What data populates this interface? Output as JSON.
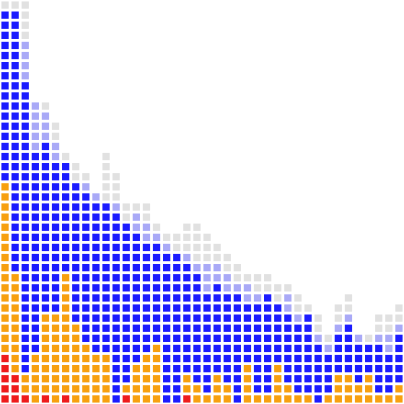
{
  "chart_data": {
    "type": "heatmap",
    "title": "",
    "xlabel": "",
    "ylabel": "",
    "grid": false,
    "legend": "none",
    "colors": {
      "red": "#ee1c1c",
      "orange": "#f7a00f",
      "blue": "#1b1bff",
      "faded_blue": "#a9a9f7",
      "gray": "#e1e1e1"
    },
    "columns": [
      [
        [
          5,
          "red"
        ],
        [
          17,
          "orange"
        ],
        [
          17,
          "blue"
        ],
        [
          1,
          "gray"
        ]
      ],
      [
        [
          3,
          "red"
        ],
        [
          10,
          "orange"
        ],
        [
          26,
          "blue"
        ],
        [
          1,
          "gray"
        ]
      ],
      [
        [
          1,
          "red"
        ],
        [
          2,
          "orange"
        ],
        [
          29,
          "blue"
        ],
        [
          4,
          "faded_blue"
        ],
        [
          4,
          "gray"
        ]
      ],
      [
        [
          0,
          "red"
        ],
        [
          5,
          "orange"
        ],
        [
          20,
          "blue"
        ],
        [
          5,
          "faded_blue"
        ],
        [
          0,
          "gray"
        ]
      ],
      [
        [
          1,
          "red"
        ],
        [
          8,
          "orange"
        ],
        [
          17,
          "blue"
        ],
        [
          3,
          "faded_blue"
        ],
        [
          1,
          "gray"
        ]
      ],
      [
        [
          0,
          "red"
        ],
        [
          9,
          "orange"
        ],
        [
          15,
          "blue"
        ],
        [
          2,
          "faded_blue"
        ],
        [
          2,
          "gray"
        ]
      ],
      [
        [
          1,
          "red"
        ],
        [
          12,
          "orange"
        ],
        [
          11,
          "blue"
        ],
        [
          0,
          "faded_blue"
        ],
        [
          1,
          "gray"
        ]
      ],
      [
        [
          0,
          "red"
        ],
        [
          8,
          "orange"
        ],
        [
          14,
          "blue"
        ],
        [
          0,
          "faded_blue"
        ],
        [
          2,
          "gray"
        ]
      ],
      [
        [
          0,
          "red"
        ],
        [
          6,
          "orange"
        ],
        [
          15,
          "blue"
        ],
        [
          1,
          "faded_blue"
        ],
        [
          1,
          "gray"
        ]
      ],
      [
        [
          0,
          "red"
        ],
        [
          5,
          "orange"
        ],
        [
          15,
          "blue"
        ],
        [
          1,
          "faded_blue"
        ],
        [
          0,
          "gray"
        ]
      ],
      [
        [
          0,
          "red"
        ],
        [
          5,
          "orange"
        ],
        [
          15,
          "blue"
        ],
        [
          0,
          "faded_blue"
        ],
        [
          5,
          "gray"
        ]
      ],
      [
        [
          0,
          "red"
        ],
        [
          0,
          "orange"
        ],
        [
          19,
          "blue"
        ],
        [
          1,
          "faded_blue"
        ],
        [
          3,
          "gray"
        ]
      ],
      [
        [
          1,
          "red"
        ],
        [
          1,
          "orange"
        ],
        [
          16,
          "blue"
        ],
        [
          0,
          "faded_blue"
        ],
        [
          2,
          "gray"
        ]
      ],
      [
        [
          0,
          "red"
        ],
        [
          4,
          "orange"
        ],
        [
          13,
          "blue"
        ],
        [
          2,
          "faded_blue"
        ],
        [
          1,
          "gray"
        ]
      ],
      [
        [
          0,
          "red"
        ],
        [
          5,
          "orange"
        ],
        [
          11,
          "blue"
        ],
        [
          2,
          "faded_blue"
        ],
        [
          2,
          "gray"
        ]
      ],
      [
        [
          0,
          "red"
        ],
        [
          6,
          "orange"
        ],
        [
          10,
          "blue"
        ],
        [
          1,
          "faded_blue"
        ],
        [
          1,
          "gray"
        ]
      ],
      [
        [
          0,
          "red"
        ],
        [
          0,
          "orange"
        ],
        [
          15,
          "blue"
        ],
        [
          1,
          "faded_blue"
        ],
        [
          1,
          "gray"
        ]
      ],
      [
        [
          0,
          "red"
        ],
        [
          0,
          "orange"
        ],
        [
          15,
          "blue"
        ],
        [
          0,
          "faded_blue"
        ],
        [
          2,
          "gray"
        ]
      ],
      [
        [
          1,
          "red"
        ],
        [
          2,
          "orange"
        ],
        [
          11,
          "blue"
        ],
        [
          1,
          "faded_blue"
        ],
        [
          3,
          "gray"
        ]
      ],
      [
        [
          0,
          "red"
        ],
        [
          2,
          "orange"
        ],
        [
          11,
          "blue"
        ],
        [
          1,
          "faded_blue"
        ],
        [
          4,
          "gray"
        ]
      ],
      [
        [
          0,
          "red"
        ],
        [
          1,
          "orange"
        ],
        [
          10,
          "blue"
        ],
        [
          3,
          "faded_blue"
        ],
        [
          3,
          "gray"
        ]
      ],
      [
        [
          0,
          "red"
        ],
        [
          3,
          "orange"
        ],
        [
          9,
          "blue"
        ],
        [
          2,
          "faded_blue"
        ],
        [
          2,
          "gray"
        ]
      ],
      [
        [
          0,
          "red"
        ],
        [
          2,
          "orange"
        ],
        [
          9,
          "blue"
        ],
        [
          2,
          "faded_blue"
        ],
        [
          2,
          "gray"
        ]
      ],
      [
        [
          0,
          "red"
        ],
        [
          0,
          "orange"
        ],
        [
          11,
          "blue"
        ],
        [
          1,
          "faded_blue"
        ],
        [
          2,
          "gray"
        ]
      ],
      [
        [
          0,
          "red"
        ],
        [
          4,
          "orange"
        ],
        [
          6,
          "blue"
        ],
        [
          2,
          "faded_blue"
        ],
        [
          1,
          "gray"
        ]
      ],
      [
        [
          0,
          "red"
        ],
        [
          1,
          "orange"
        ],
        [
          9,
          "blue"
        ],
        [
          1,
          "faded_blue"
        ],
        [
          2,
          "gray"
        ]
      ],
      [
        [
          0,
          "red"
        ],
        [
          1,
          "orange"
        ],
        [
          10,
          "blue"
        ],
        [
          0,
          "faded_blue"
        ],
        [
          2,
          "gray"
        ]
      ],
      [
        [
          0,
          "red"
        ],
        [
          4,
          "orange"
        ],
        [
          6,
          "blue"
        ],
        [
          0,
          "faded_blue"
        ],
        [
          2,
          "gray"
        ]
      ],
      [
        [
          0,
          "red"
        ],
        [
          2,
          "orange"
        ],
        [
          7,
          "blue"
        ],
        [
          2,
          "faded_blue"
        ],
        [
          1,
          "gray"
        ]
      ],
      [
        [
          0,
          "red"
        ],
        [
          1,
          "orange"
        ],
        [
          7,
          "blue"
        ],
        [
          1,
          "faded_blue"
        ],
        [
          2,
          "gray"
        ]
      ],
      [
        [
          0,
          "red"
        ],
        [
          1,
          "orange"
        ],
        [
          8,
          "blue"
        ],
        [
          0,
          "faded_blue"
        ],
        [
          1,
          "gray"
        ]
      ],
      [
        [
          0,
          "red"
        ],
        [
          0,
          "orange"
        ],
        [
          6,
          "blue"
        ],
        [
          1,
          "faded_blue"
        ],
        [
          2,
          "gray"
        ]
      ],
      [
        [
          0,
          "red"
        ],
        [
          1,
          "orange"
        ],
        [
          4,
          "blue"
        ],
        [
          1,
          "faded_blue"
        ],
        [
          1,
          "gray"
        ]
      ],
      [
        [
          0,
          "red"
        ],
        [
          3,
          "orange"
        ],
        [
          4,
          "blue"
        ],
        [
          1,
          "faded_blue"
        ],
        [
          2,
          "gray"
        ]
      ],
      [
        [
          0,
          "red"
        ],
        [
          3,
          "orange"
        ],
        [
          5,
          "blue"
        ],
        [
          1,
          "faded_blue"
        ],
        [
          2,
          "gray"
        ]
      ],
      [
        [
          0,
          "red"
        ],
        [
          2,
          "orange"
        ],
        [
          4,
          "blue"
        ],
        [
          1,
          "faded_blue"
        ],
        [
          0,
          "gray"
        ]
      ],
      [
        [
          0,
          "red"
        ],
        [
          3,
          "orange"
        ],
        [
          3,
          "blue"
        ],
        [
          0,
          "faded_blue"
        ],
        [
          1,
          "gray"
        ]
      ],
      [
        [
          0,
          "red"
        ],
        [
          1,
          "orange"
        ],
        [
          5,
          "blue"
        ],
        [
          1,
          "faded_blue"
        ],
        [
          2,
          "gray"
        ]
      ],
      [
        [
          0,
          "red"
        ],
        [
          1,
          "orange"
        ],
        [
          4,
          "blue"
        ],
        [
          2,
          "faded_blue"
        ],
        [
          2,
          "gray"
        ]
      ],
      [
        [
          0,
          "red"
        ],
        [
          2,
          "orange"
        ],
        [
          5,
          "blue"
        ],
        [
          1,
          "faded_blue"
        ],
        [
          2,
          "gray"
        ]
      ]
    ]
  }
}
